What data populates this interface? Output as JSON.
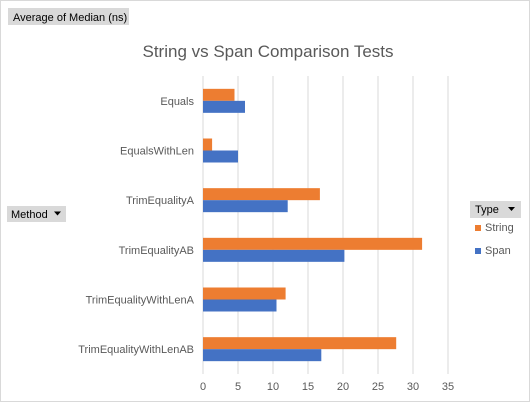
{
  "filter_button": {
    "label": "Average of Median (ns)"
  },
  "row_field_button": {
    "label": "Method",
    "dropdown_icon": "dropdown-arrow-icon"
  },
  "legend_field_button": {
    "label": "Type",
    "dropdown_icon": "dropdown-arrow-icon"
  },
  "colors": {
    "string": "#ed7d31",
    "span": "#4472c4",
    "grid": "#d9d9d9",
    "button_bg": "#d9d9d9"
  },
  "chart_data": {
    "type": "bar",
    "orientation": "horizontal",
    "title": "String vs Span Comparison Tests",
    "categories": [
      "Equals",
      "EqualsWithLen",
      "TrimEqualityA",
      "TrimEqualityAB",
      "TrimEqualityWithLenA",
      "TrimEqualityWithLenAB"
    ],
    "series": [
      {
        "name": "String",
        "values": [
          4.5,
          1.3,
          16.7,
          31.3,
          11.8,
          27.6
        ]
      },
      {
        "name": "Span",
        "values": [
          6.0,
          5.0,
          12.1,
          20.2,
          10.5,
          16.9
        ]
      }
    ],
    "xlim": [
      0,
      35
    ],
    "xticks": [
      0,
      5,
      10,
      15,
      20,
      25,
      30,
      35
    ],
    "grid": true,
    "legend_position": "right"
  }
}
